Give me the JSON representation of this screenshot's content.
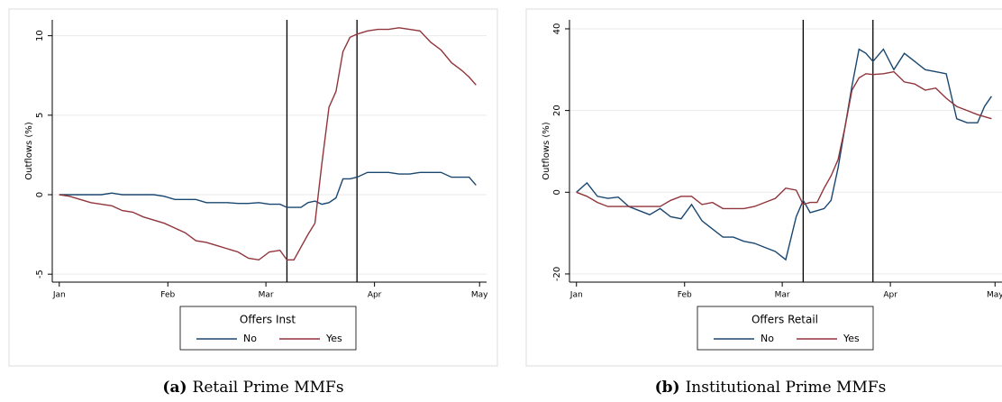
{
  "chart_data": [
    {
      "type": "line",
      "caption_label": "(a)",
      "caption": "Retail Prime MMFs",
      "y_label": "Outflows (%)",
      "legend_title": "Offers Inst",
      "legend": "bottom",
      "grid": true,
      "x": [
        0,
        3,
        6,
        9,
        12,
        15,
        18,
        21,
        24,
        27,
        30,
        33,
        36,
        39,
        42,
        45,
        48,
        51,
        54,
        57,
        60,
        63,
        65,
        67,
        69,
        71,
        73,
        75,
        77,
        79,
        81,
        83,
        85,
        88,
        91,
        94,
        97,
        100,
        103,
        106,
        109,
        112,
        115,
        117,
        119
      ],
      "xlim": [
        -2,
        122
      ],
      "xticks": [
        {
          "value": 0,
          "label": "Jan"
        },
        {
          "value": 31,
          "label": "Feb"
        },
        {
          "value": 59,
          "label": "Mar"
        },
        {
          "value": 90,
          "label": "Apr"
        },
        {
          "value": 120,
          "label": "May"
        }
      ],
      "ylim": [
        -5.5,
        11
      ],
      "yticks": [
        -5,
        0,
        5,
        10
      ],
      "vlines": [
        65,
        85
      ],
      "series": [
        {
          "name": "No",
          "color": "#1a476f",
          "values": [
            0,
            0,
            0,
            0,
            0,
            0.1,
            0,
            0,
            0,
            0,
            -0.1,
            -0.3,
            -0.3,
            -0.3,
            -0.5,
            -0.5,
            -0.5,
            -0.55,
            -0.55,
            -0.5,
            -0.6,
            -0.6,
            -0.8,
            -0.8,
            -0.8,
            -0.5,
            -0.4,
            -0.6,
            -0.5,
            -0.2,
            1.0,
            1.0,
            1.1,
            1.4,
            1.4,
            1.4,
            1.3,
            1.3,
            1.4,
            1.4,
            1.4,
            1.1,
            1.1,
            1.1,
            0.6
          ]
        },
        {
          "name": "Yes",
          "color": "#90353b",
          "values": [
            0,
            -0.1,
            -0.3,
            -0.5,
            -0.6,
            -0.7,
            -1.0,
            -1.1,
            -1.4,
            -1.6,
            -1.8,
            -2.1,
            -2.4,
            -2.9,
            -3.0,
            -3.2,
            -3.4,
            -3.6,
            -4.0,
            -4.1,
            -3.6,
            -3.5,
            -4.1,
            -4.1,
            -3.3,
            -2.5,
            -1.8,
            2.0,
            5.5,
            6.5,
            9.0,
            9.9,
            10.1,
            10.3,
            10.4,
            10.4,
            10.5,
            10.4,
            10.3,
            9.6,
            9.1,
            8.3,
            7.8,
            7.4,
            6.9
          ]
        }
      ]
    },
    {
      "type": "line",
      "caption_label": "(b)",
      "caption": "Institutional Prime MMFs",
      "y_label": "Outflows (%)",
      "legend_title": "Offers Retail",
      "legend": "bottom",
      "grid": true,
      "x": [
        0,
        3,
        6,
        9,
        12,
        15,
        18,
        21,
        24,
        27,
        30,
        33,
        36,
        39,
        42,
        45,
        48,
        51,
        54,
        57,
        60,
        63,
        65,
        67,
        69,
        71,
        73,
        75,
        77,
        79,
        81,
        83,
        85,
        88,
        91,
        94,
        97,
        100,
        103,
        106,
        109,
        112,
        115,
        117,
        119
      ],
      "xlim": [
        -2,
        122
      ],
      "xticks": [
        {
          "value": 0,
          "label": "Jan"
        },
        {
          "value": 31,
          "label": "Feb"
        },
        {
          "value": 59,
          "label": "Mar"
        },
        {
          "value": 90,
          "label": "Apr"
        },
        {
          "value": 120,
          "label": "May"
        }
      ],
      "ylim": [
        -22,
        42.2
      ],
      "yticks": [
        -20,
        0,
        20,
        40
      ],
      "vlines": [
        65,
        85
      ],
      "series": [
        {
          "name": "No",
          "color": "#1a476f",
          "values": [
            0,
            2.3,
            -1.0,
            -1.5,
            -1.2,
            -3.5,
            -4.5,
            -5.5,
            -4.0,
            -6.0,
            -6.5,
            -3.0,
            -7,
            -9,
            -11,
            -11,
            -12,
            -12.5,
            -13.5,
            -14.5,
            -16.5,
            -6,
            -2,
            -5,
            -4.5,
            -4,
            -2,
            6,
            16,
            26,
            35,
            34,
            32,
            35,
            30,
            34,
            32,
            30,
            29.5,
            29,
            18,
            17,
            17,
            21,
            23.5
          ]
        },
        {
          "name": "Yes",
          "color": "#90353b",
          "values": [
            0,
            -1,
            -2.5,
            -3.5,
            -3.5,
            -3.5,
            -3.5,
            -3.5,
            -3.5,
            -2,
            -1,
            -1,
            -3,
            -2.5,
            -4,
            -4,
            -4,
            -3.5,
            -2.5,
            -1.5,
            1,
            0.5,
            -3,
            -2.5,
            -2.5,
            1,
            4,
            8,
            16,
            25,
            28,
            29,
            28.8,
            29,
            29.5,
            27,
            26.5,
            25,
            25.5,
            23,
            21,
            20,
            19,
            18.5,
            18
          ]
        }
      ]
    }
  ]
}
